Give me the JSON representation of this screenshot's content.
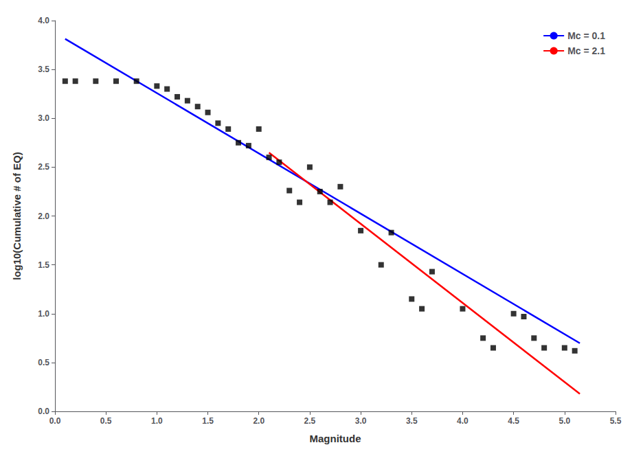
{
  "chart_data": {
    "type": "scatter",
    "xlabel": "Magnitude",
    "ylabel": "log10(Cumulative # of EQ)",
    "xlim": [
      0.0,
      5.5
    ],
    "ylim": [
      0.0,
      4.0
    ],
    "xticks": [
      {
        "value": 0.0,
        "label": "0.0"
      },
      0.5,
      {
        "value": 1.0,
        "label": "1.0"
      },
      1.5,
      {
        "value": 2.0,
        "label": "2.0"
      },
      2.5,
      {
        "value": 3.0,
        "label": "3.0"
      },
      3.5,
      {
        "value": 4.0,
        "label": "4.0"
      },
      4.5,
      {
        "value": 5.0,
        "label": "5.0"
      },
      5.5
    ],
    "yticks": [
      {
        "value": 0.0,
        "label": "0.0"
      },
      0.5,
      {
        "value": 1.0,
        "label": "1.0"
      },
      1.5,
      {
        "value": 2.0,
        "label": "2.0"
      },
      2.5,
      {
        "value": 3.0,
        "label": "3.0"
      },
      3.5,
      {
        "value": 4.0,
        "label": "4.0"
      }
    ],
    "grid": false,
    "legend": "upper right",
    "series": [
      {
        "type": "scatter",
        "color": "#000000",
        "marker": "square",
        "x": [
          0.1,
          0.2,
          0.4,
          0.6,
          0.8,
          1.0,
          1.1,
          1.2,
          1.3,
          1.4,
          1.5,
          1.6,
          1.7,
          1.8,
          1.9,
          2.0,
          2.1,
          2.2,
          2.3,
          2.4,
          2.5,
          2.6,
          2.7,
          2.8,
          3.0,
          3.2,
          3.3,
          3.5,
          3.6,
          3.7,
          4.0,
          4.2,
          4.3,
          4.5,
          4.6,
          4.7,
          4.8,
          5.0,
          5.1
        ],
        "values": [
          3.38,
          3.38,
          3.38,
          3.38,
          3.38,
          3.33,
          3.3,
          3.22,
          3.18,
          3.12,
          3.06,
          2.95,
          2.89,
          2.75,
          2.72,
          2.89,
          2.6,
          2.55,
          2.26,
          2.14,
          2.5,
          2.25,
          2.14,
          2.3,
          1.85,
          1.5,
          1.83,
          1.15,
          1.05,
          1.43,
          1.05,
          0.75,
          0.65,
          1.0,
          0.97,
          0.75,
          0.65,
          0.65,
          0.62
        ]
      },
      {
        "type": "line",
        "name": "Mc = 0.1",
        "color": "#0000ff",
        "line_style": "solid",
        "x": [
          0.1,
          5.15
        ],
        "values": [
          3.8133,
          0.69745
        ]
      },
      {
        "type": "line",
        "name": "Mc = 2.1",
        "color": "#ff0000",
        "line_style": "solid",
        "x": [
          2.1,
          5.15
        ],
        "values": [
          2.649,
          0.1785
        ]
      }
    ]
  }
}
